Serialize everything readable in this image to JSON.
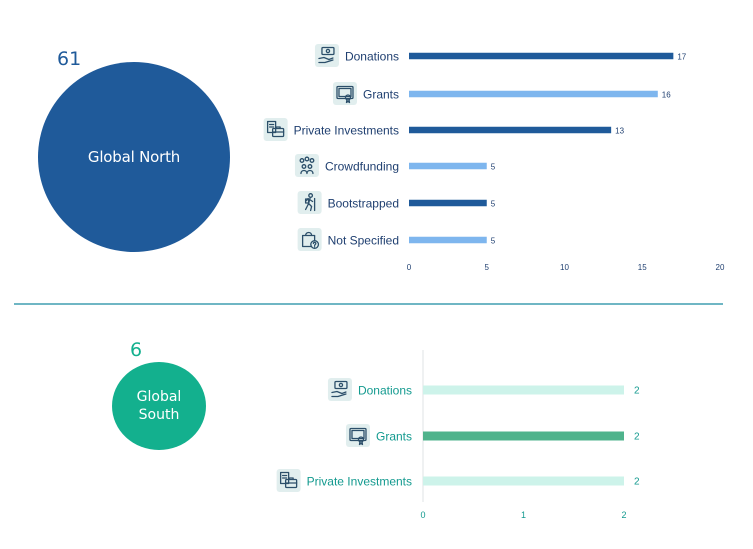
{
  "palette": {
    "north_dark": "#1f5a9a",
    "north_light": "#7eb6ee",
    "north_text": "#1f3f70",
    "south_dark": "#4fb38c",
    "south_light": "#cdf3ea",
    "south_text": "#139a8f",
    "divider": "#6fb6c4",
    "icon_bg": "#e1eeee"
  },
  "north": {
    "count": "61",
    "label": "Global North"
  },
  "south": {
    "count": "6",
    "label": "Global South"
  },
  "chart_data": [
    {
      "type": "bar",
      "orientation": "horizontal",
      "panel": "Global North",
      "categories": [
        "Donations",
        "Grants",
        "Private Investments",
        "Crowdfunding",
        "Bootstrapped",
        "Not Specified"
      ],
      "icons": [
        "hand-money-icon",
        "certificate-icon",
        "briefcase-docs-icon",
        "people-group-icon",
        "hiker-icon",
        "bag-question-icon"
      ],
      "values": [
        17,
        16,
        13,
        5,
        5,
        5
      ],
      "bar_colors": [
        "#1f5a9a",
        "#7eb6ee",
        "#1f5a9a",
        "#7eb6ee",
        "#1f5a9a",
        "#7eb6ee"
      ],
      "xlim": [
        0,
        20
      ],
      "xticks": [
        0,
        5,
        10,
        15,
        20
      ],
      "grid": false,
      "value_labels": true
    },
    {
      "type": "bar",
      "orientation": "horizontal",
      "panel": "Global South",
      "categories": [
        "Donations",
        "Grants",
        "Private Investments"
      ],
      "icons": [
        "hand-money-icon",
        "certificate-icon",
        "briefcase-docs-icon"
      ],
      "values": [
        2,
        2,
        2
      ],
      "bar_colors": [
        "#cdf3ea",
        "#4fb38c",
        "#cdf3ea"
      ],
      "xlim": [
        0,
        2
      ],
      "xticks": [
        0,
        1,
        2
      ],
      "grid": false,
      "value_labels": true
    }
  ]
}
